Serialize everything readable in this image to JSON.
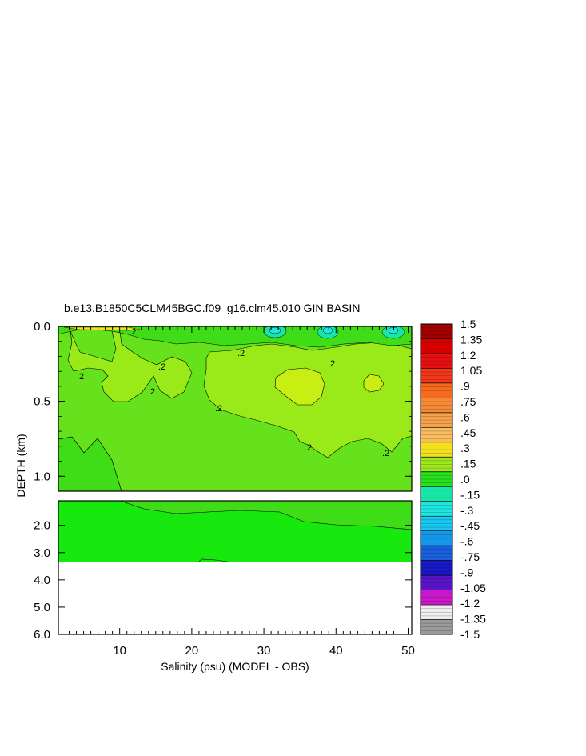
{
  "chart_data": {
    "type": "heatmap",
    "title": "b.e13.B1850C5CLM45BGC.f09_g16.clm45.010 GIN BASIN",
    "xlabel": "Salinity (psu) (MODEL - OBS)",
    "ylabel": "DEPTH (km)",
    "x_ticks": [
      "10",
      "20",
      "30",
      "40",
      "50"
    ],
    "xlim": [
      1.5,
      50.5
    ],
    "upper_panel": {
      "ylim": [
        0.0,
        1.1
      ],
      "y_ticks": [
        "0.0",
        "0.5",
        "1.0"
      ]
    },
    "lower_panel": {
      "ylim": [
        1.1,
        6.0
      ],
      "y_ticks": [
        "2.0",
        "3.0",
        "4.0",
        "5.0",
        "6.0"
      ]
    },
    "data_bottom_depth_km": 3.35,
    "contour_labels": [
      ".2"
    ],
    "colorbar": {
      "labels": [
        "1.5",
        "1.35",
        "1.2",
        "1.05",
        ".9",
        ".75",
        ".6",
        ".45",
        ".3",
        ".15",
        ".0",
        "-.15",
        "-.3",
        "-.45",
        "-.6",
        "-.75",
        "-.9",
        "-1.05",
        "-1.2",
        "-1.35",
        "-1.5"
      ],
      "levels": [
        1.5,
        1.35,
        1.2,
        1.05,
        0.9,
        0.75,
        0.6,
        0.45,
        0.3,
        0.15,
        0.0,
        -0.15,
        -0.3,
        -0.45,
        -0.6,
        -0.75,
        -0.9,
        -1.05,
        -1.2,
        -1.35,
        -1.5
      ],
      "colors": [
        "#a40000",
        "#d40000",
        "#e61010",
        "#f23818",
        "#f56a1e",
        "#f58a36",
        "#f7a24a",
        "#f9bc5e",
        "#f4e020",
        "#9ee81e",
        "#28e01c",
        "#18e6a8",
        "#20e6e0",
        "#18c8f0",
        "#1696e8",
        "#1a60dc",
        "#1818c8",
        "#5a14c8",
        "#c818c8",
        "#eeeeee",
        "#9a9a9a"
      ]
    },
    "regions": [
      {
        "name": "upper-mid-layer",
        "value": 0.2,
        "depth_km": [
          0.05,
          0.75
        ]
      },
      {
        "name": "core-high",
        "value": 0.3,
        "x": [
          31,
          41
        ],
        "depth_km": [
          0.3,
          0.55
        ]
      },
      {
        "name": "small-high",
        "value": 0.3,
        "x": [
          44.5,
          47.5
        ],
        "depth_km": [
          0.33,
          0.45
        ]
      },
      {
        "name": "surface-minima",
        "value": -0.2,
        "x": [
          29,
          51
        ],
        "depth_km": [
          0.0,
          0.1
        ]
      },
      {
        "name": "deep-layer",
        "value": 0.1,
        "depth_km": [
          0.75,
          3.35
        ]
      }
    ]
  }
}
